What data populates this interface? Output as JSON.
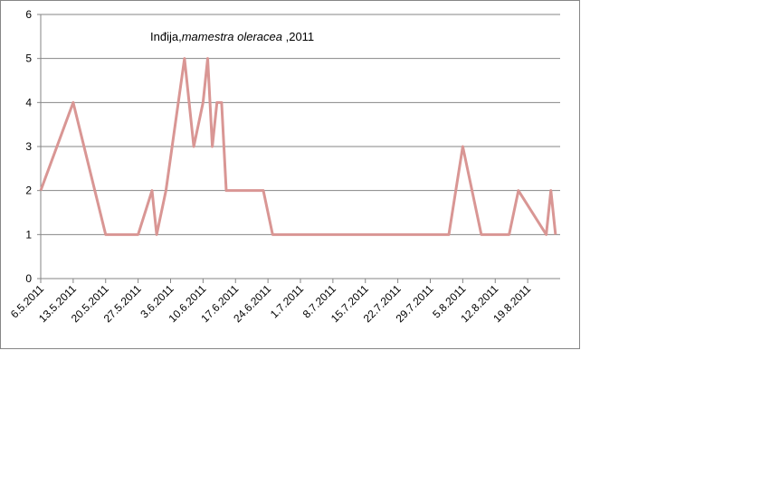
{
  "chart_data": {
    "type": "line",
    "title": [
      "Inđija,",
      "mamestra oleracea",
      " ,2011"
    ],
    "x": [
      "6.5.2011",
      "13.5.2011",
      "20.5.2011",
      "27.5.2011",
      "30.5.2011",
      "31.5.2011",
      "2.6.2011",
      "6.6.2011",
      "8.6.2011",
      "10.6.2011",
      "11.6.2011",
      "12.6.2011",
      "13.6.2011",
      "14.6.2011",
      "15.6.2011",
      "23.6.2011",
      "25.6.2011",
      "2.8.2011",
      "5.8.2011",
      "9.8.2011",
      "15.8.2011",
      "17.8.2011",
      "23.8.2011",
      "24.8.2011",
      "25.8.2011"
    ],
    "series": [
      {
        "name": "mamestra oleracea",
        "color": "#d99694",
        "values": [
          2,
          4,
          1,
          1,
          2,
          1,
          2,
          5,
          3,
          4,
          5,
          3,
          4,
          4,
          2,
          2,
          1,
          1,
          3,
          1,
          1,
          2,
          1,
          2,
          1
        ]
      }
    ],
    "xlim": [
      "6.5.2011",
      "26.8.2011"
    ],
    "xticks": [
      "6.5.2011",
      "13.5.2011",
      "20.5.2011",
      "27.5.2011",
      "3.6.2011",
      "10.6.2011",
      "17.6.2011",
      "24.6.2011",
      "1.7.2011",
      "8.7.2011",
      "15.7.2011",
      "22.7.2011",
      "29.7.2011",
      "5.8.2011",
      "12.8.2011",
      "19.8.2011"
    ],
    "ylim": [
      0,
      6
    ],
    "yticks": [
      0,
      1,
      2,
      3,
      4,
      5,
      6
    ],
    "grid": true
  }
}
